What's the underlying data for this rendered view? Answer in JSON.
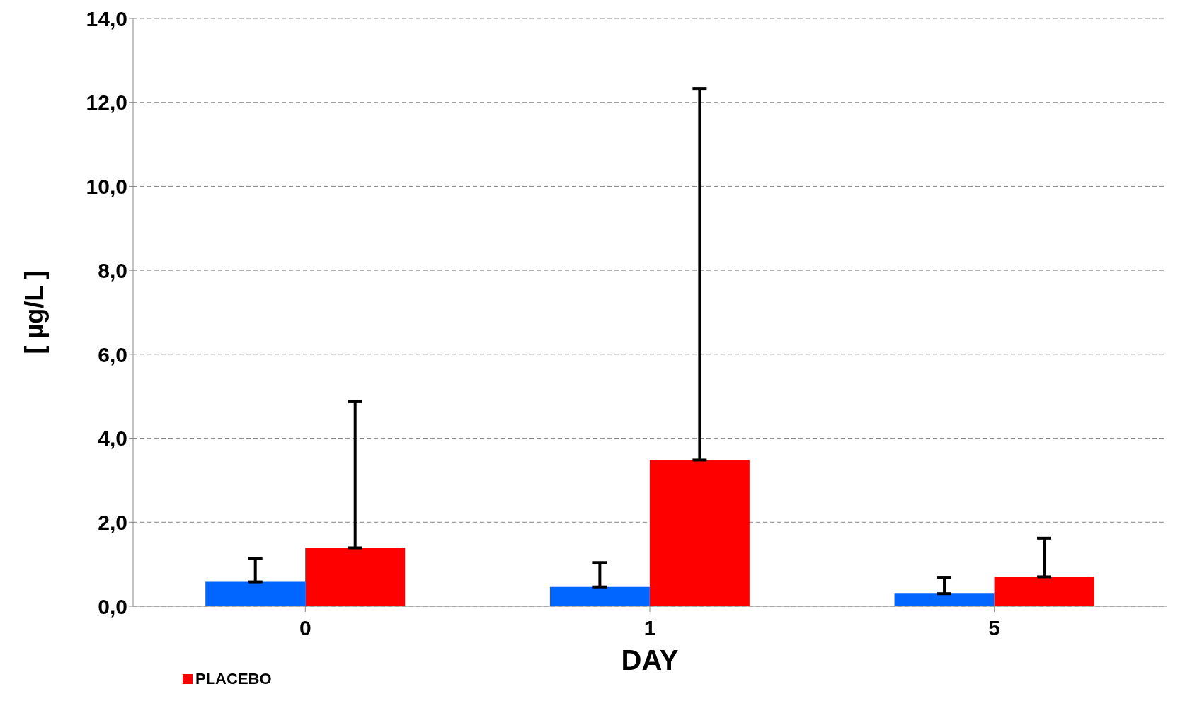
{
  "chart_data": {
    "type": "bar",
    "xlabel": "DAY",
    "ylabel": "[ µg/L ]",
    "categories": [
      "0",
      "1",
      "5"
    ],
    "series": [
      {
        "color": "#0066ff",
        "values": [
          0.58,
          0.46,
          0.3
        ],
        "errors": [
          [
            0.58,
            1.13
          ],
          [
            0.46,
            1.04
          ],
          [
            0.3,
            0.69
          ]
        ]
      },
      {
        "name": "PLACEBO",
        "color": "#ff0000",
        "values": [
          1.39,
          3.48,
          0.7
        ],
        "errors": [
          [
            1.39,
            4.87
          ],
          [
            3.48,
            12.33
          ],
          [
            0.7,
            1.62
          ]
        ]
      }
    ],
    "ylim": [
      0,
      14
    ],
    "yticks": [
      {
        "value": 0,
        "label": "0,0"
      },
      {
        "value": 2,
        "label": "2,0"
      },
      {
        "value": 4,
        "label": "4,0"
      },
      {
        "value": 6,
        "label": "6,0"
      },
      {
        "value": 8,
        "label": "8,0"
      },
      {
        "value": 10,
        "label": "10,0"
      },
      {
        "value": 12,
        "label": "12,0"
      },
      {
        "value": 14,
        "label": "14,0"
      }
    ],
    "grid": "y",
    "legend": "bottom left"
  }
}
